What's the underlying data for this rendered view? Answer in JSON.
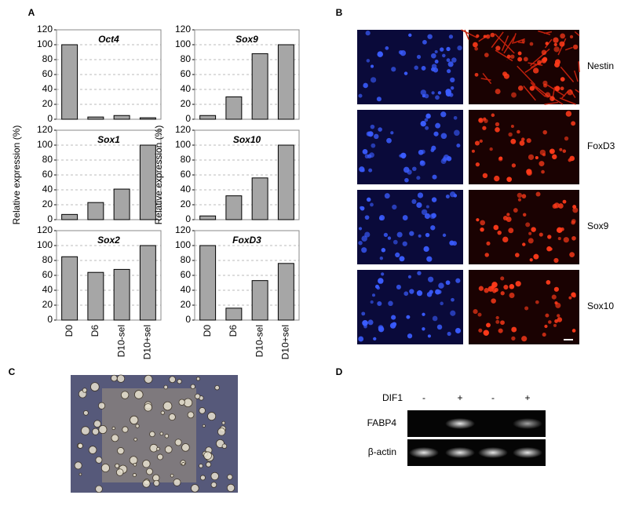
{
  "panel_labels": [
    "A",
    "B",
    "C",
    "D"
  ],
  "chart_data": [
    {
      "type": "bar",
      "title": "Oct4",
      "values": [
        100,
        3,
        5,
        2
      ],
      "color": "#a6a6a6",
      "ylim": [
        0,
        120
      ],
      "yticks": [
        0,
        20,
        40,
        60,
        80,
        100,
        120
      ],
      "grid": true
    },
    {
      "type": "bar",
      "title": "Sox9",
      "values": [
        5,
        30,
        88,
        100
      ],
      "color": "#a6a6a6",
      "ylim": [
        0,
        120
      ],
      "yticks": [
        0,
        20,
        40,
        60,
        80,
        100,
        120
      ],
      "grid": true
    },
    {
      "type": "bar",
      "title": "Sox1",
      "y_label": "Relative expression (%)",
      "values": [
        7,
        23,
        41,
        100
      ],
      "color": "#a6a6a6",
      "ylim": [
        0,
        120
      ],
      "yticks": [
        0,
        20,
        40,
        60,
        80,
        100,
        120
      ],
      "grid": true
    },
    {
      "type": "bar",
      "title": "Sox10",
      "y_label": "Relative expression (%)",
      "values": [
        5,
        32,
        56,
        100
      ],
      "color": "#a6a6a6",
      "ylim": [
        0,
        120
      ],
      "yticks": [
        0,
        20,
        40,
        60,
        80,
        100,
        120
      ],
      "grid": true
    },
    {
      "type": "bar",
      "title": "Sox2",
      "categories": [
        "D0",
        "D6",
        "D10-sel",
        "D10+sel"
      ],
      "values": [
        85,
        64,
        68,
        100
      ],
      "color": "#a6a6a6",
      "ylim": [
        0,
        120
      ],
      "yticks": [
        0,
        20,
        40,
        60,
        80,
        100,
        120
      ],
      "grid": true
    },
    {
      "type": "bar",
      "title": "FoxD3",
      "categories": [
        "D0",
        "D6",
        "D10-sel",
        "D10+sel"
      ],
      "values": [
        100,
        16,
        53,
        76
      ],
      "color": "#a6a6a6",
      "ylim": [
        0,
        120
      ],
      "yticks": [
        0,
        20,
        40,
        60,
        80,
        100,
        120
      ],
      "grid": true
    }
  ],
  "panel_b": {
    "rows": [
      "Nestin",
      "FoxD3",
      "Sox9",
      "Sox10"
    ]
  },
  "panel_d": {
    "treatment": "DIF1",
    "lanes": [
      "-",
      "+",
      "-",
      "+"
    ],
    "bands": [
      "FABP4",
      "β-actin"
    ]
  }
}
